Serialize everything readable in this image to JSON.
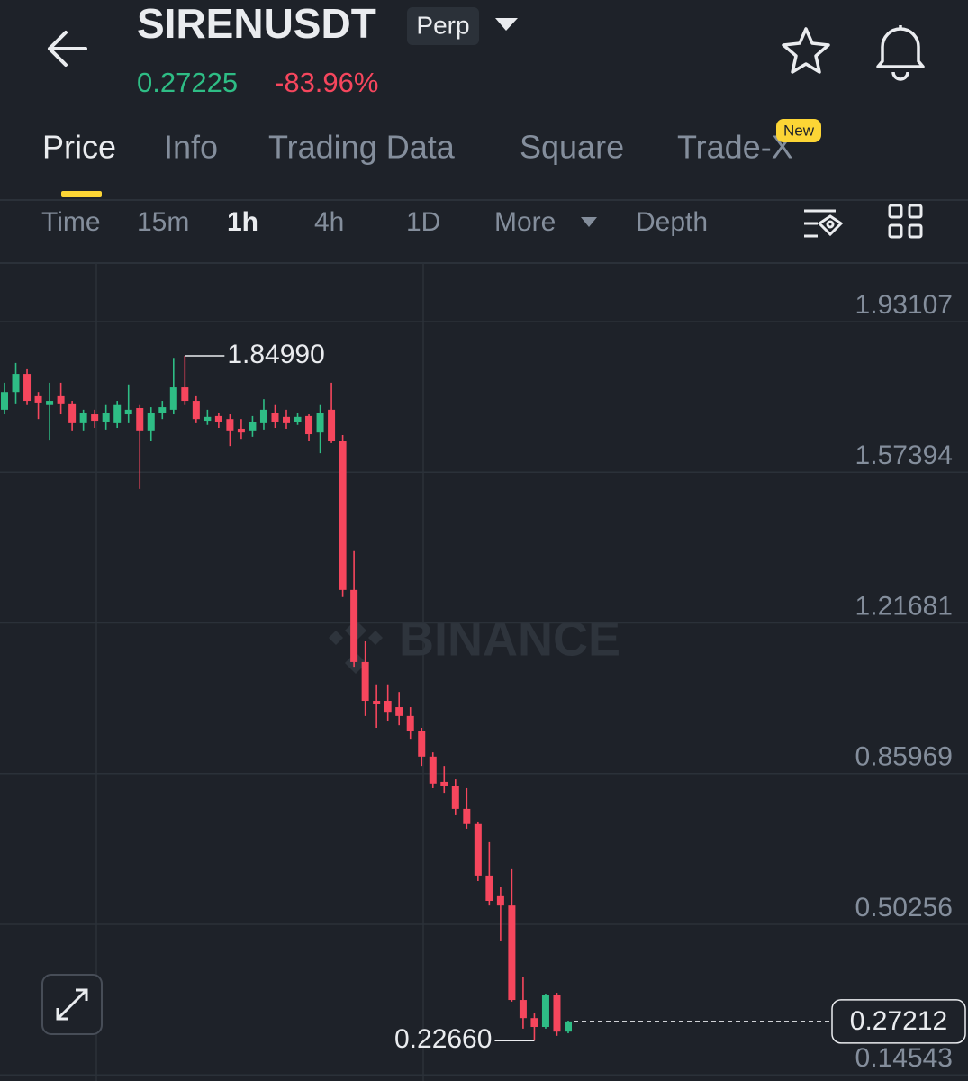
{
  "header": {
    "symbol": "SIRENUSDT",
    "badge": "Perp",
    "last_price": "0.27225",
    "change": "-83.96%"
  },
  "tabs": {
    "items": [
      "Price",
      "Info",
      "Trading Data",
      "Square",
      "Trade-X"
    ],
    "new_badge": "New"
  },
  "intervals": [
    "Time",
    "15m",
    "1h",
    "4h",
    "1D",
    "More",
    "Depth"
  ],
  "watermark": "BINANCE",
  "chart_data": {
    "type": "candlestick",
    "up_color": "#2ebd85",
    "down_color": "#f6465d",
    "ylim": [
      0.1416,
      2.0698
    ],
    "yticks": [
      1.93107,
      1.57394,
      1.21681,
      0.85969,
      0.50256,
      0.14543
    ],
    "grid": true,
    "open": [
      1.722,
      1.764,
      1.807,
      1.754,
      1.733,
      1.754,
      1.737,
      1.69,
      1.711,
      1.694,
      1.69,
      1.711,
      1.726,
      1.673,
      1.715,
      1.722,
      1.775,
      1.743,
      1.696,
      1.707,
      1.7,
      1.677,
      1.673,
      1.69,
      1.715,
      1.705,
      1.694,
      1.707,
      1.668,
      1.722,
      1.647,
      1.295,
      1.124,
      1.032,
      1.032,
      1.017,
      0.996,
      0.96,
      0.9,
      0.84,
      0.831,
      0.776,
      0.74,
      0.618,
      0.569,
      0.547,
      0.323,
      0.28,
      0.259,
      0.334,
      0.248
    ],
    "high": [
      1.786,
      1.833,
      1.818,
      1.764,
      1.786,
      1.786,
      1.743,
      1.722,
      1.722,
      1.733,
      1.743,
      1.782,
      1.733,
      1.728,
      1.743,
      1.845,
      1.8499,
      1.754,
      1.722,
      1.715,
      1.711,
      1.7,
      1.707,
      1.747,
      1.733,
      1.722,
      1.715,
      1.711,
      1.733,
      1.786,
      1.662,
      1.387,
      1.173,
      1.071,
      1.071,
      1.053,
      1.017,
      0.968,
      0.91,
      0.878,
      0.846,
      0.825,
      0.746,
      0.697,
      0.59,
      0.633,
      0.377,
      0.291,
      0.338,
      0.34,
      0.274
    ],
    "low": [
      1.711,
      1.737,
      1.733,
      1.7,
      1.651,
      1.711,
      1.673,
      1.673,
      1.679,
      1.675,
      1.679,
      1.69,
      1.534,
      1.647,
      1.7,
      1.711,
      1.733,
      1.69,
      1.686,
      1.679,
      1.636,
      1.653,
      1.658,
      1.675,
      1.679,
      1.677,
      1.686,
      1.647,
      1.619,
      1.643,
      1.278,
      1.113,
      0.996,
      0.968,
      0.985,
      0.974,
      0.942,
      0.878,
      0.825,
      0.814,
      0.761,
      0.729,
      0.605,
      0.547,
      0.462,
      0.319,
      0.255,
      0.2266,
      0.255,
      0.238,
      0.244
    ],
    "close": [
      1.764,
      1.807,
      1.743,
      1.739,
      1.743,
      1.737,
      1.69,
      1.715,
      1.696,
      1.715,
      1.733,
      1.722,
      1.673,
      1.715,
      1.728,
      1.775,
      1.743,
      1.7,
      1.705,
      1.694,
      1.673,
      1.668,
      1.694,
      1.722,
      1.694,
      1.69,
      1.705,
      1.664,
      1.715,
      1.647,
      1.295,
      1.124,
      1.032,
      1.024,
      1.006,
      0.996,
      0.96,
      0.9,
      0.836,
      0.831,
      0.776,
      0.74,
      0.618,
      0.558,
      0.547,
      0.323,
      0.28,
      0.259,
      0.334,
      0.248,
      0.27212
    ],
    "high_annotation": {
      "value": 1.8499,
      "label": "1.84990"
    },
    "low_annotation": {
      "value": 0.2266,
      "label": "0.22660"
    },
    "current_price": 0.27212
  }
}
